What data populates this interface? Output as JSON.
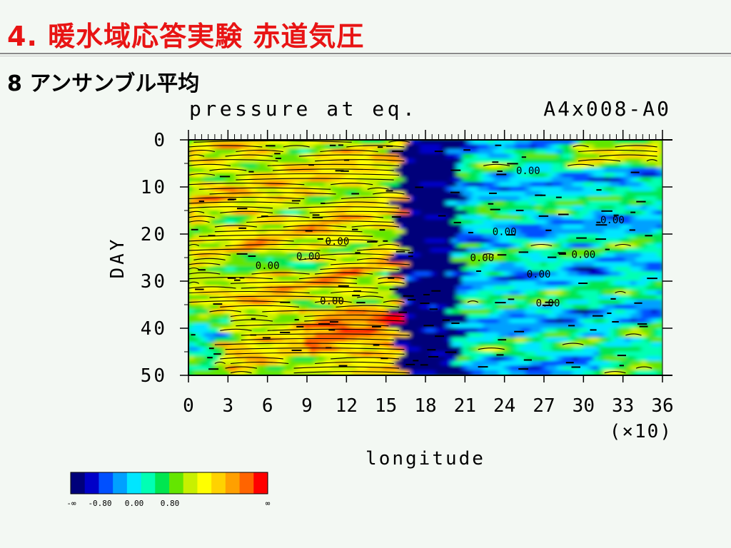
{
  "slide": {
    "title": "4. 暖水域応答実験 赤道気圧",
    "subtitle": "8 アンサンブル平均"
  },
  "chart_data": {
    "type": "heatmap",
    "title": "pressure at eq.",
    "run_label": "A4x008-A0",
    "xlabel": "longitude",
    "ylabel": "DAY",
    "x_scale_note": "(×10)",
    "xlim": [
      0,
      36
    ],
    "ylim": [
      0,
      50
    ],
    "x_ticks": [
      "0",
      "3",
      "6",
      "9",
      "12",
      "15",
      "18",
      "21",
      "24",
      "27",
      "30",
      "33",
      "36"
    ],
    "y_ticks": [
      "0",
      "10",
      "20",
      "30",
      "40",
      "50"
    ],
    "contour_label": "0.00",
    "contour_labels_at": [
      {
        "x": 25.8,
        "y": 6.5
      },
      {
        "x": 11.3,
        "y": 21.5
      },
      {
        "x": 24.0,
        "y": 19.5
      },
      {
        "x": 32.2,
        "y": 17.0
      },
      {
        "x": 9.1,
        "y": 24.7
      },
      {
        "x": 22.3,
        "y": 25.0
      },
      {
        "x": 30.0,
        "y": 24.3
      },
      {
        "x": 6.0,
        "y": 26.7
      },
      {
        "x": 26.6,
        "y": 28.5
      },
      {
        "x": 10.9,
        "y": 34.2
      },
      {
        "x": 27.3,
        "y": 34.6
      }
    ],
    "colorbar": {
      "colors": [
        "#00007a",
        "#0000c8",
        "#0050ff",
        "#00a0ff",
        "#00e6ff",
        "#00ffb4",
        "#00e650",
        "#64e600",
        "#c8f000",
        "#ffff00",
        "#ffd200",
        "#ffa000",
        "#ff6400",
        "#ff0000"
      ],
      "labels": [
        "-∞",
        "-0.80",
        "0.00",
        "0.80",
        "∞"
      ]
    }
  }
}
